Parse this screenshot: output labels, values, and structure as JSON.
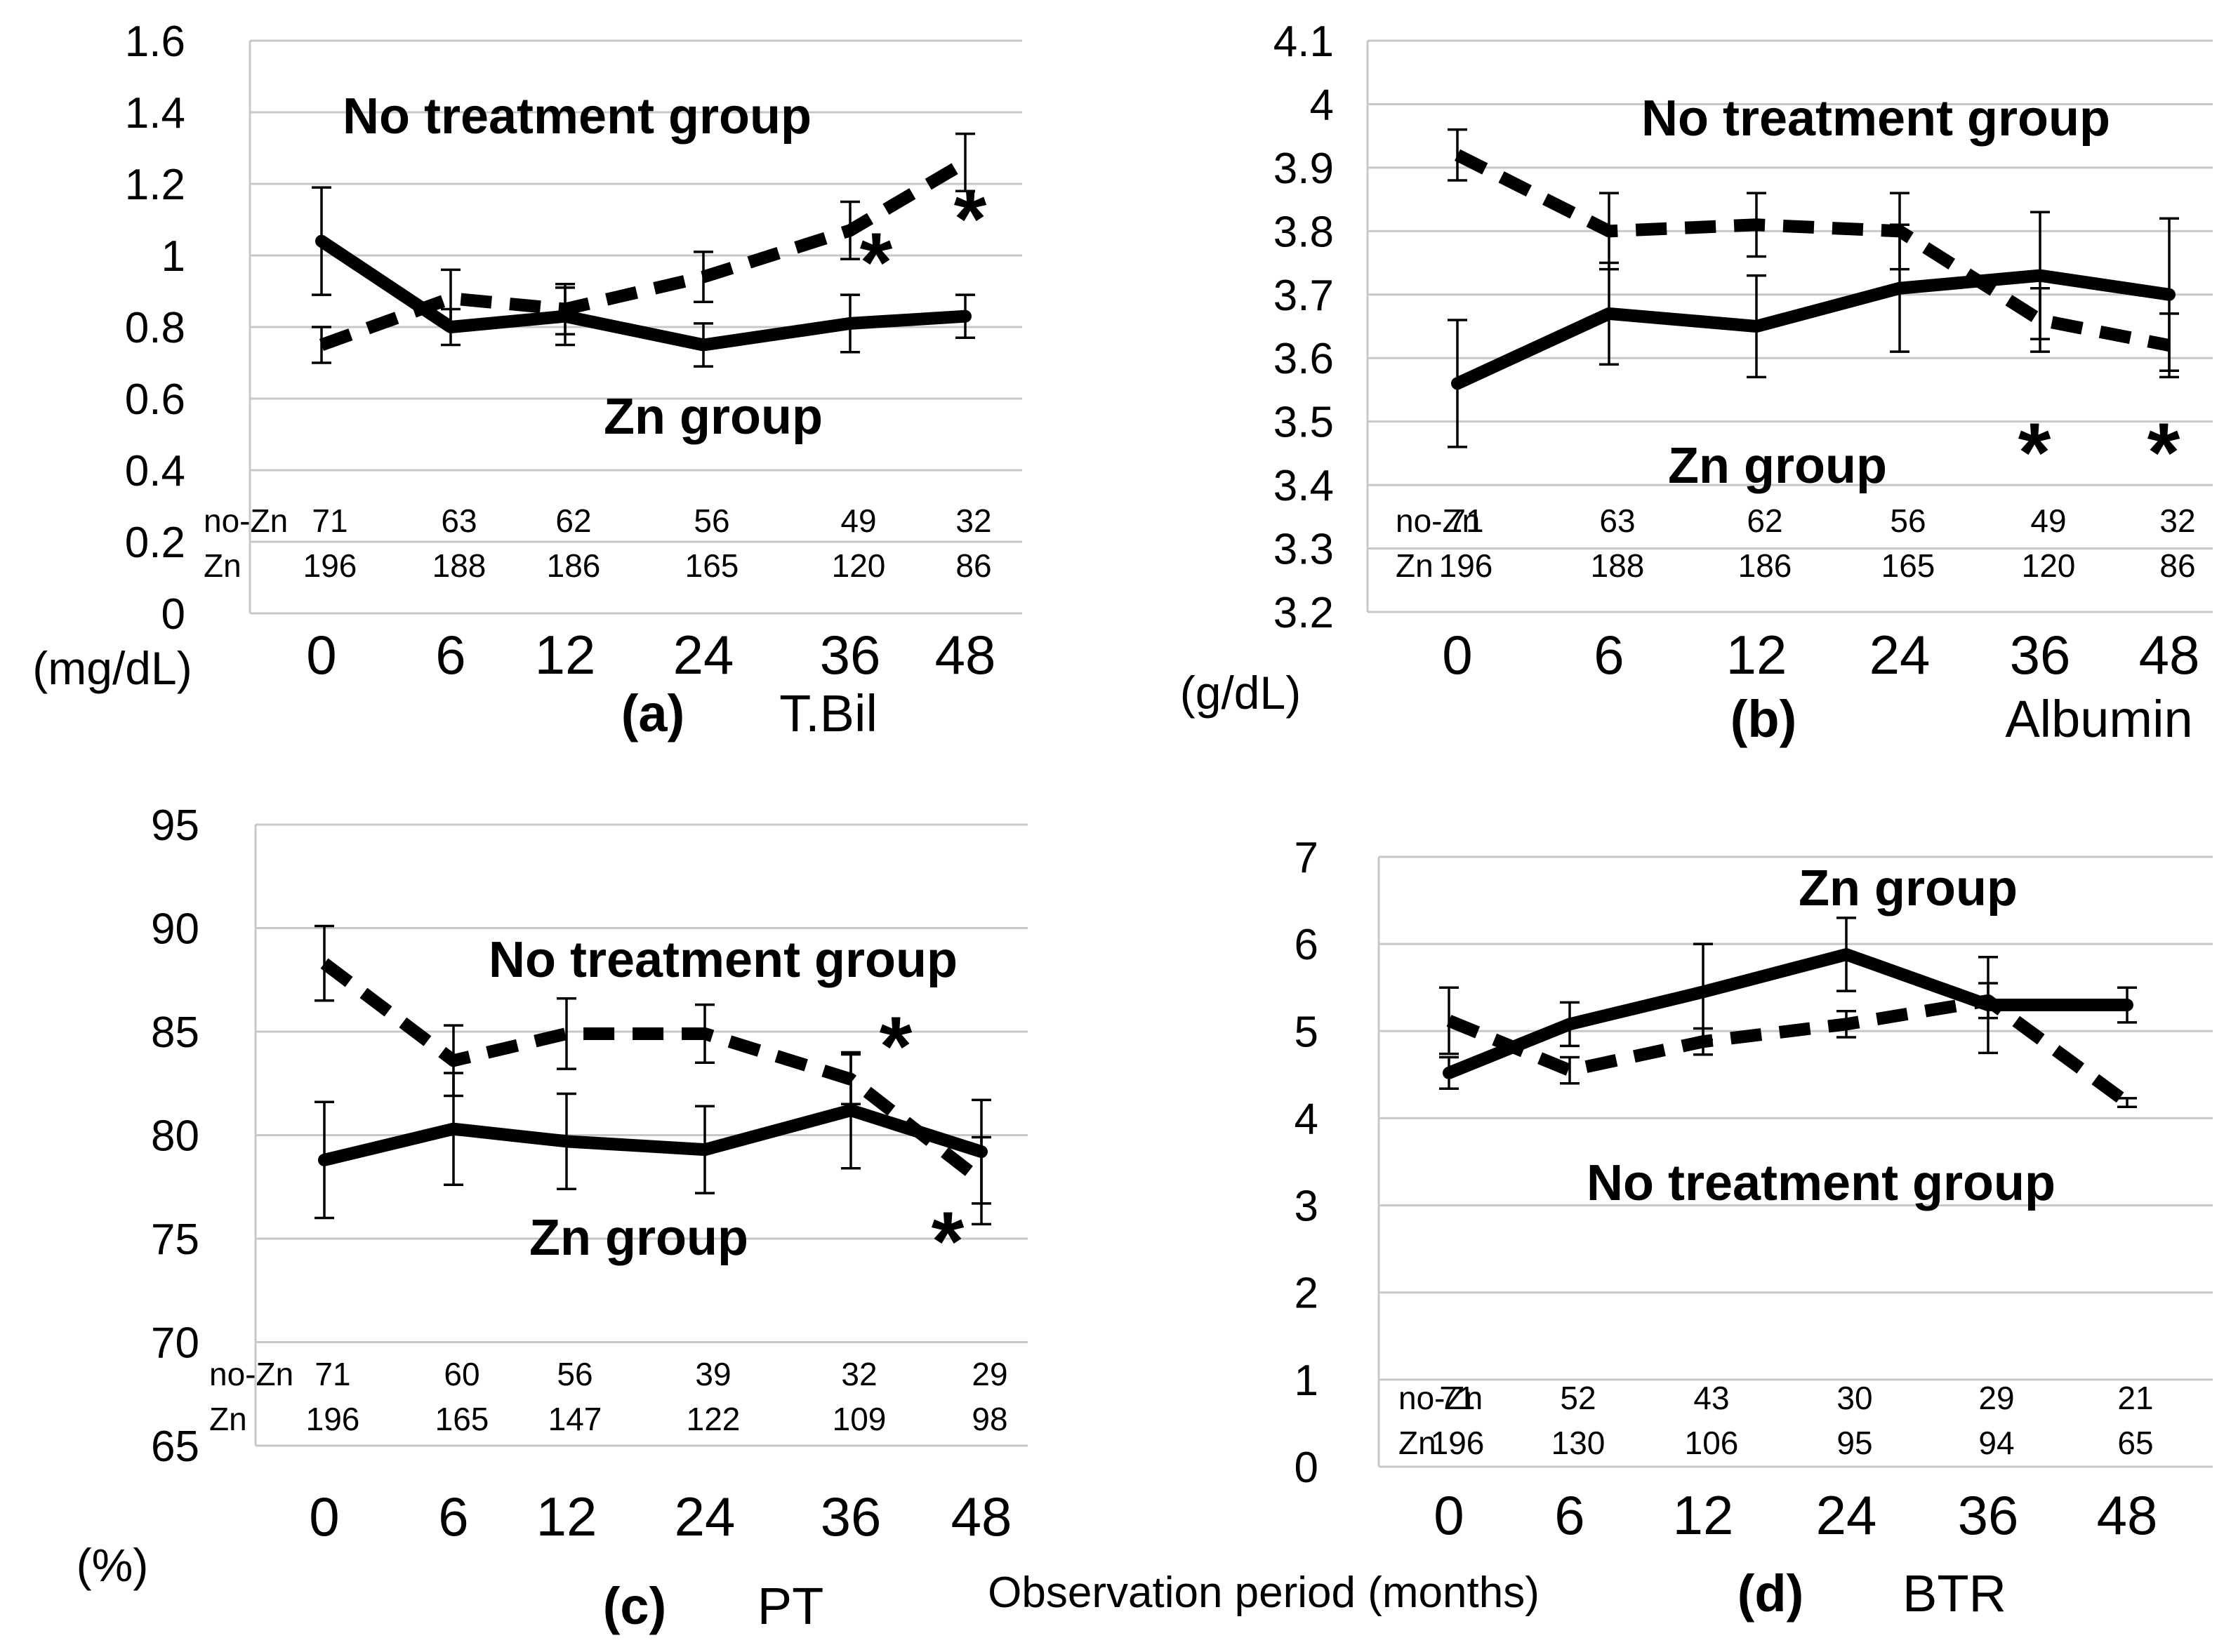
{
  "figure": {
    "x_axis_label": "Observation period (months)"
  },
  "chart_data": [
    {
      "type": "line",
      "panel_letter": "(a)",
      "title": "T.Bil",
      "unit": "(mg/dL)",
      "categories": [
        "0",
        "6",
        "12",
        "24",
        "36",
        "48"
      ],
      "ylim": [
        0,
        1.6
      ],
      "yticks": [
        "0",
        "0.2",
        "0.4",
        "0.6",
        "0.8",
        "1",
        "1.2",
        "1.4",
        "1.6"
      ],
      "series": [
        {
          "name": "Zn group",
          "style": "solid",
          "values": [
            1.04,
            0.8,
            0.83,
            0.75,
            0.81,
            0.83
          ],
          "errors": [
            0.15,
            0.05,
            0.08,
            0.06,
            0.08,
            0.06
          ]
        },
        {
          "name": "No treatment group",
          "style": "dashed",
          "values": [
            0.75,
            0.88,
            0.85,
            0.94,
            1.07,
            1.26
          ],
          "errors": [
            0.05,
            0.08,
            0.07,
            0.07,
            0.08,
            0.08
          ]
        }
      ],
      "n_rows": [
        {
          "label": "no-Zn",
          "values": [
            "71",
            "63",
            "62",
            "56",
            "49",
            "32"
          ]
        },
        {
          "label": "Zn",
          "values": [
            "196",
            "188",
            "186",
            "165",
            "120",
            "86"
          ]
        }
      ],
      "significance_marker": "*",
      "significant_points": [
        "36",
        "48"
      ]
    },
    {
      "type": "line",
      "panel_letter": "(b)",
      "title": "Albumin",
      "unit": "(g/dL)",
      "categories": [
        "0",
        "6",
        "12",
        "24",
        "36",
        "48"
      ],
      "ylim": [
        3.2,
        4.1
      ],
      "yticks": [
        "3.2",
        "3.3",
        "3.4",
        "3.5",
        "3.6",
        "3.7",
        "3.8",
        "3.9",
        "4",
        "4.1"
      ],
      "series": [
        {
          "name": "Zn group",
          "style": "solid",
          "values": [
            3.56,
            3.67,
            3.65,
            3.71,
            3.73,
            3.7
          ],
          "errors": [
            0.1,
            0.08,
            0.08,
            0.1,
            0.1,
            0.12
          ]
        },
        {
          "name": "No treatment group",
          "style": "dashed",
          "values": [
            3.92,
            3.8,
            3.81,
            3.8,
            3.66,
            3.62
          ],
          "errors": [
            0.04,
            0.06,
            0.05,
            0.06,
            0.05,
            0.05
          ]
        }
      ],
      "n_rows": [
        {
          "label": "no-Zn",
          "values": [
            "71",
            "63",
            "62",
            "56",
            "49",
            "32"
          ]
        },
        {
          "label": "Zn",
          "values": [
            "196",
            "188",
            "186",
            "165",
            "120",
            "86"
          ]
        }
      ],
      "significance_marker": "*",
      "significant_points": [
        "36",
        "48"
      ]
    },
    {
      "type": "line",
      "panel_letter": "(c)",
      "title": "PT",
      "unit": "(%)",
      "categories": [
        "0",
        "6",
        "12",
        "24",
        "36",
        "48"
      ],
      "ylim": [
        65,
        95
      ],
      "yticks": [
        "65",
        "70",
        "75",
        "80",
        "85",
        "90",
        "95"
      ],
      "series": [
        {
          "name": "Zn group",
          "style": "solid",
          "values": [
            78.8,
            80.3,
            79.7,
            79.3,
            81.2,
            79.2
          ],
          "errors": [
            2.8,
            2.7,
            2.3,
            2.1,
            2.8,
            2.5
          ]
        },
        {
          "name": "No treatment group",
          "style": "dashed",
          "values": [
            88.3,
            83.6,
            84.9,
            84.9,
            82.7,
            77.8
          ],
          "errors": [
            1.8,
            1.7,
            1.7,
            1.4,
            1.2,
            2.1
          ]
        }
      ],
      "n_rows": [
        {
          "label": "no-Zn",
          "values": [
            "71",
            "60",
            "56",
            "39",
            "32",
            "29"
          ]
        },
        {
          "label": "Zn",
          "values": [
            "196",
            "165",
            "147",
            "122",
            "109",
            "98"
          ]
        }
      ],
      "significance_marker": "*",
      "significant_points": [
        "36",
        "48"
      ]
    },
    {
      "type": "line",
      "panel_letter": "(d)",
      "title": "BTR",
      "unit": "",
      "categories": [
        "0",
        "6",
        "12",
        "24",
        "36",
        "48"
      ],
      "ylim": [
        0,
        7
      ],
      "yticks": [
        "0",
        "1",
        "2",
        "3",
        "4",
        "5",
        "6",
        "7"
      ],
      "series": [
        {
          "name": "Zn group",
          "style": "solid",
          "values": [
            4.52,
            5.08,
            5.45,
            5.88,
            5.3,
            5.3
          ],
          "errors": [
            0.18,
            0.25,
            0.55,
            0.42,
            0.55,
            0.2
          ]
        },
        {
          "name": "No treatment group",
          "style": "dashed",
          "values": [
            5.12,
            4.55,
            4.88,
            5.08,
            5.35,
            4.18
          ],
          "errors": [
            0.38,
            0.15,
            0.15,
            0.15,
            0.2,
            0.05
          ]
        }
      ],
      "n_rows": [
        {
          "label": "no-Zn",
          "values": [
            "71",
            "52",
            "43",
            "30",
            "29",
            "21"
          ]
        },
        {
          "label": "Zn",
          "values": [
            "196",
            "130",
            "106",
            "95",
            "94",
            "65"
          ]
        }
      ],
      "significance_marker": "",
      "significant_points": []
    }
  ]
}
